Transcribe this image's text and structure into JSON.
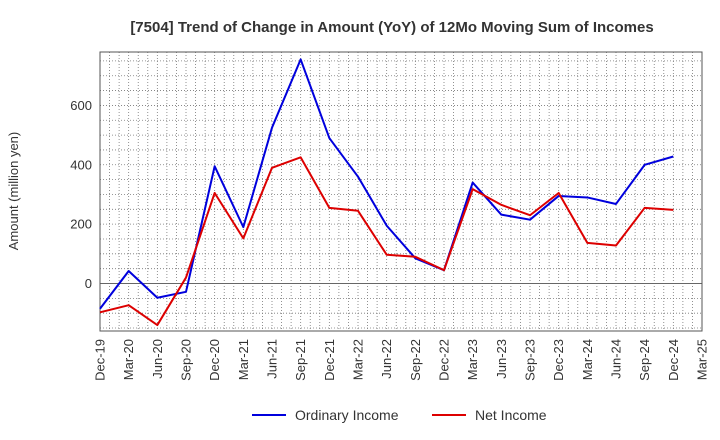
{
  "chart_data": {
    "type": "line",
    "title": "[7504]  Trend of Change in Amount (YoY) of 12Mo Moving Sum of Incomes",
    "ylabel": "Amount (million yen)",
    "xlabel": "",
    "ylim": [
      -160,
      780
    ],
    "yticks": [
      0,
      200,
      400,
      600
    ],
    "categories": [
      "Dec-19",
      "Mar-20",
      "Jun-20",
      "Sep-20",
      "Dec-20",
      "Mar-21",
      "Jun-21",
      "Sep-21",
      "Dec-21",
      "Mar-22",
      "Jun-22",
      "Sep-22",
      "Dec-22",
      "Mar-23",
      "Jun-23",
      "Sep-23",
      "Dec-23",
      "Mar-24",
      "Jun-24",
      "Sep-24",
      "Dec-24",
      "Mar-25"
    ],
    "series": [
      {
        "name": "Ordinary Income",
        "color": "#0000dd",
        "values": [
          -85,
          42,
          -48,
          -28,
          395,
          190,
          525,
          755,
          490,
          360,
          195,
          85,
          45,
          340,
          232,
          215,
          295,
          290,
          268,
          400,
          428,
          null
        ]
      },
      {
        "name": "Net Income",
        "color": "#dd0000",
        "values": [
          -97,
          -73,
          -140,
          20,
          305,
          152,
          390,
          425,
          255,
          245,
          97,
          90,
          45,
          318,
          265,
          230,
          305,
          137,
          128,
          255,
          248,
          null
        ]
      }
    ],
    "grid": true,
    "legend": "bottom-center"
  }
}
